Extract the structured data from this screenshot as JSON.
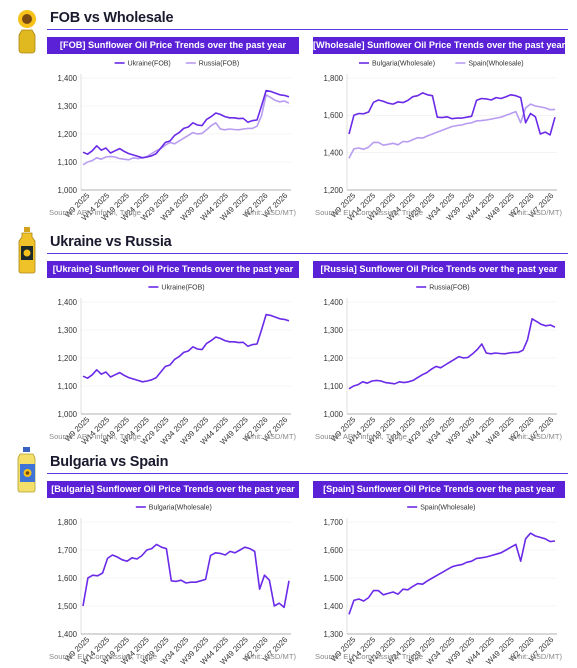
{
  "sections": [
    {
      "title": "FOB vs Wholesale",
      "icon": "sunflower-icon"
    },
    {
      "title": "Ukraine vs Russia",
      "icon": "oil-bottle-icon"
    },
    {
      "title": "Bulgaria vs Spain",
      "icon": "oil-jug-icon"
    }
  ],
  "colors": {
    "accent": "#5b21d6",
    "primary_line": "#6a2ae8",
    "secondary_line": "#b79cf0"
  },
  "x_ticks": [
    "W9 2025",
    "W14 2025",
    "W19 2025",
    "W24 2025",
    "W29 2025",
    "W34 2025",
    "W39 2025",
    "W44 2025",
    "W49 2025",
    "W2 2026",
    "W7 2026"
  ],
  "chart_data": [
    {
      "type": "line",
      "title": "[FOB] Sunflower Oil Price Trends over the past year",
      "source": "Source: APK-inform, Tridge",
      "unit": "(Unit: USD/MT)",
      "ylim": [
        1000,
        1400
      ],
      "yticks": [
        "1,000",
        "1,100",
        "1,200",
        "1,300",
        "1,400"
      ],
      "legend_position": "top-center",
      "series": [
        {
          "name": "Ukraine(FOB)",
          "color": "#6a2ae8",
          "values": [
            1135,
            1128,
            1140,
            1158,
            1142,
            1150,
            1132,
            1140,
            1148,
            1138,
            1130,
            1125,
            1120,
            1115,
            1118,
            1122,
            1130,
            1150,
            1170,
            1175,
            1195,
            1205,
            1220,
            1225,
            1240,
            1232,
            1230,
            1252,
            1262,
            1275,
            1270,
            1262,
            1258,
            1258,
            1255,
            1256,
            1242,
            1248,
            1250,
            1300,
            1355,
            1352,
            1346,
            1340,
            1338,
            1333
          ]
        },
        {
          "name": "Russia(FOB)",
          "color": "#b79cf0",
          "values": [
            1090,
            1100,
            1105,
            1115,
            1110,
            1118,
            1120,
            1118,
            1112,
            1110,
            1108,
            1115,
            1112,
            1115,
            1120,
            1130,
            1140,
            1148,
            1160,
            1170,
            1165,
            1175,
            1185,
            1195,
            1205,
            1200,
            1202,
            1215,
            1230,
            1240,
            1218,
            1215,
            1218,
            1216,
            1215,
            1218,
            1220,
            1220,
            1228,
            1265,
            1340,
            1330,
            1320,
            1315,
            1318,
            1310
          ]
        }
      ]
    },
    {
      "type": "line",
      "title": "[Wholesale] Sunflower Oil Price Trends over the past year",
      "source": "Source: EU Commission, Tridge",
      "unit": "(Unit: USD/MT)",
      "ylim": [
        1200,
        1800
      ],
      "yticks": [
        "1,200",
        "1,400",
        "1,600",
        "1,800"
      ],
      "legend_position": "top-center",
      "series": [
        {
          "name": "Bulgaria(Wholesale)",
          "color": "#6a2ae8",
          "values": [
            1500,
            1600,
            1610,
            1608,
            1618,
            1670,
            1682,
            1675,
            1665,
            1660,
            1672,
            1668,
            1680,
            1700,
            1705,
            1720,
            1710,
            1705,
            1590,
            1588,
            1592,
            1582,
            1585,
            1585,
            1590,
            1595,
            1680,
            1690,
            1688,
            1682,
            1695,
            1690,
            1700,
            1710,
            1705,
            1695,
            1560,
            1610,
            1592,
            1500,
            1510,
            1495,
            1590
          ]
        },
        {
          "name": "Spain(Wholesale)",
          "color": "#b79cf0",
          "values": [
            1370,
            1420,
            1425,
            1418,
            1430,
            1455,
            1455,
            1440,
            1445,
            1450,
            1442,
            1460,
            1458,
            1470,
            1480,
            1478,
            1490,
            1500,
            1510,
            1520,
            1530,
            1540,
            1545,
            1548,
            1556,
            1560,
            1570,
            1572,
            1575,
            1580,
            1585,
            1590,
            1600,
            1610,
            1620,
            1560,
            1640,
            1660,
            1650,
            1645,
            1640,
            1630,
            1632
          ]
        }
      ]
    },
    {
      "type": "line",
      "title": "[Ukraine] Sunflower Oil Price Trends over the past year",
      "source": "Source: APK-inform, Tridge",
      "unit": "(Unit: USD/MT)",
      "ylim": [
        1000,
        1400
      ],
      "yticks": [
        "1,000",
        "1,100",
        "1,200",
        "1,300",
        "1,400"
      ],
      "legend_position": "top-center",
      "series": [
        {
          "name": "Ukraine(FOB)",
          "color": "#6a2ae8",
          "values": [
            1135,
            1128,
            1140,
            1158,
            1142,
            1150,
            1132,
            1140,
            1148,
            1138,
            1130,
            1125,
            1120,
            1115,
            1118,
            1122,
            1130,
            1150,
            1170,
            1175,
            1195,
            1205,
            1220,
            1225,
            1240,
            1232,
            1230,
            1252,
            1262,
            1275,
            1270,
            1262,
            1258,
            1258,
            1255,
            1256,
            1242,
            1248,
            1250,
            1300,
            1355,
            1352,
            1346,
            1340,
            1338,
            1333
          ]
        }
      ]
    },
    {
      "type": "line",
      "title": "[Russia] Sunflower Oil Price Trends over the past year",
      "source": "Source: APK-inform, Tridge",
      "unit": "(Unit: USD/MT)",
      "ylim": [
        1000,
        1400
      ],
      "yticks": [
        "1,000",
        "1,100",
        "1,200",
        "1,300",
        "1,400"
      ],
      "legend_position": "top-center",
      "series": [
        {
          "name": "Russia(FOB)",
          "color": "#6a2ae8",
          "values": [
            1090,
            1100,
            1105,
            1115,
            1110,
            1118,
            1120,
            1118,
            1112,
            1110,
            1108,
            1115,
            1112,
            1115,
            1120,
            1130,
            1140,
            1148,
            1160,
            1170,
            1165,
            1175,
            1185,
            1195,
            1205,
            1200,
            1202,
            1215,
            1230,
            1250,
            1218,
            1215,
            1218,
            1216,
            1215,
            1218,
            1220,
            1220,
            1228,
            1265,
            1340,
            1330,
            1320,
            1315,
            1318,
            1310
          ]
        }
      ]
    },
    {
      "type": "line",
      "title": "[Bulgaria] Sunflower Oil Price Trends over the past year",
      "source": "Source: EU Commission, Tridge",
      "unit": "(Unit: USD/MT)",
      "ylim": [
        1400,
        1800
      ],
      "yticks": [
        "1,400",
        "1,500",
        "1,600",
        "1,700",
        "1,800"
      ],
      "legend_position": "top-center",
      "series": [
        {
          "name": "Bulgaria(Wholesale)",
          "color": "#6a2ae8",
          "values": [
            1500,
            1600,
            1610,
            1608,
            1618,
            1670,
            1682,
            1675,
            1665,
            1660,
            1672,
            1668,
            1680,
            1700,
            1705,
            1720,
            1710,
            1705,
            1590,
            1588,
            1592,
            1582,
            1585,
            1585,
            1590,
            1595,
            1680,
            1690,
            1688,
            1682,
            1695,
            1690,
            1700,
            1710,
            1705,
            1695,
            1560,
            1610,
            1592,
            1500,
            1510,
            1495,
            1590
          ]
        }
      ]
    },
    {
      "type": "line",
      "title": "[Spain] Sunflower Oil Price Trends over the past year",
      "source": "Source: EU Commission, Tridge",
      "unit": "(Unit: USD/MT)",
      "ylim": [
        1300,
        1700
      ],
      "yticks": [
        "1,300",
        "1,400",
        "1,500",
        "1,600",
        "1,700"
      ],
      "legend_position": "top-center",
      "series": [
        {
          "name": "Spain(Wholesale)",
          "color": "#6a2ae8",
          "values": [
            1370,
            1420,
            1425,
            1418,
            1430,
            1455,
            1455,
            1440,
            1445,
            1450,
            1442,
            1460,
            1458,
            1470,
            1480,
            1478,
            1490,
            1500,
            1510,
            1520,
            1530,
            1540,
            1545,
            1548,
            1556,
            1560,
            1570,
            1572,
            1575,
            1580,
            1585,
            1590,
            1600,
            1610,
            1620,
            1560,
            1640,
            1660,
            1650,
            1645,
            1640,
            1630,
            1632
          ]
        }
      ]
    }
  ]
}
